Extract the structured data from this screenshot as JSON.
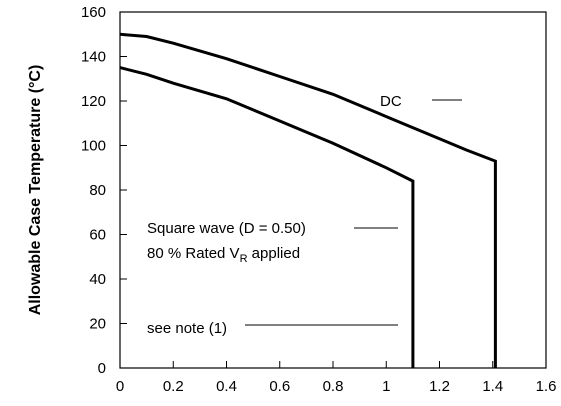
{
  "chart_data": {
    "type": "line",
    "title": "",
    "xlabel": "",
    "ylabel": "Allowable Case Temperature (°C)",
    "xlim": [
      0,
      1.6
    ],
    "ylim": [
      0,
      160
    ],
    "grid": false,
    "x_ticks": [
      "0",
      "0.2",
      "0.4",
      "0.6",
      "0.8",
      "1",
      "1.2",
      "1.4",
      "1.6"
    ],
    "y_ticks": [
      "0",
      "20",
      "40",
      "60",
      "80",
      "100",
      "120",
      "140",
      "160"
    ],
    "series": [
      {
        "name": "DC",
        "x": [
          0,
          0.1,
          0.2,
          0.4,
          0.6,
          0.8,
          1.0,
          1.2,
          1.3,
          1.41,
          1.41
        ],
        "y": [
          150,
          149,
          146,
          139,
          131,
          123,
          113,
          103,
          98,
          93,
          0
        ]
      },
      {
        "name": "",
        "x": [
          0,
          0.1,
          0.2,
          0.4,
          0.6,
          0.8,
          1.0,
          1.1,
          1.1
        ],
        "y": [
          135,
          132,
          128,
          121,
          111,
          101,
          90,
          84,
          0
        ]
      }
    ],
    "annotations": {
      "dc_label": "DC",
      "square_wave_line1": "Square wave (D = 0.50)",
      "square_wave_line2_prefix": "80 % Rated V",
      "square_wave_line2_sub": "R",
      "square_wave_line2_suffix": " applied",
      "note": "see note (1)"
    }
  }
}
